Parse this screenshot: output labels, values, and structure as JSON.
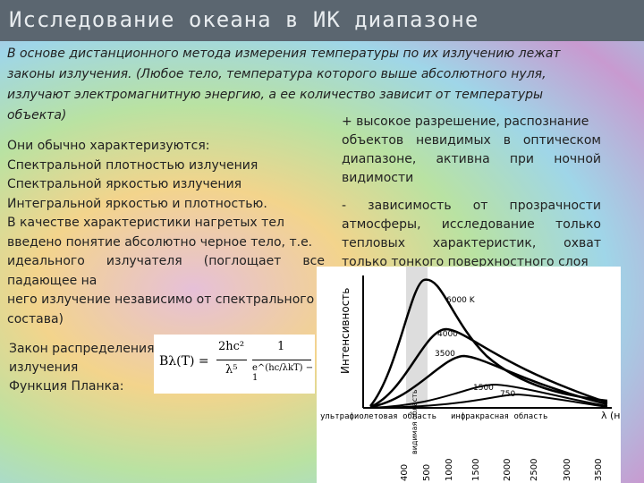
{
  "header": {
    "title": "Исследование океана в ИК диапазоне"
  },
  "intro": [
    "В основе дистанционного метода измерения температуры по их излучению лежат",
    "законы излучения. (Любое тело, температура которого выше абсолютного нуля,",
    "излучают электромагнитную энергию, а ее количество зависит от температуры",
    "объекта)"
  ],
  "left": [
    "Они обычно характеризуются:",
    "Спектральной плотностью излучения",
    "Спектральной яркостью излучения",
    "Интегральной яркостью и плотностью.",
    "В качестве характеристики нагретых тел",
    "введено понятие абсолютно черное тело, т.е.",
    "    идеального излучателя (поглощает все",
    "падающее на",
    "него излучение независимо от спектрального",
    "состава)"
  ],
  "law": [
    "Закон распределения",
    "излучения",
    "Функция Планка:"
  ],
  "formula": {
    "lhs": "Bλ(T) =",
    "num1": "2hc²",
    "den1": "λ⁵",
    "num2": "1",
    "den2": "e^(hc/λkT) − 1"
  },
  "plus": [
    "+ высокое разрешение, распознание",
    "объектов невидимых в оптическом",
    "диапазоне, активна при ночной",
    "видимости"
  ],
  "minus": [
    "- зависимость от прозрачности",
    "атмосферы, исследование только",
    "тепловых характеристик, охват",
    "только тонкого поверхностного слоя"
  ],
  "figure": {
    "y_label": "Интенсивность",
    "curves": [
      "6000 K",
      "4000",
      "3500",
      "1500",
      "750"
    ],
    "uv": "ультрафиолетовая область",
    "visible": "видимая область",
    "ir": "инфракрасная область",
    "x_label": "λ (н",
    "ticks": [
      "400",
      "500",
      "1000",
      "1500",
      "2000",
      "2500",
      "3000",
      "3500"
    ]
  }
}
